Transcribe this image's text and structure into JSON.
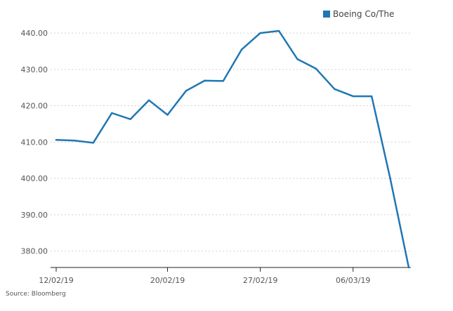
{
  "chart_data": {
    "type": "line",
    "x": [
      "12/02/19",
      "13/02/19",
      "14/02/19",
      "15/02/19",
      "18/02/19",
      "19/02/19",
      "20/02/19",
      "21/02/19",
      "22/02/19",
      "25/02/19",
      "26/02/19",
      "27/02/19",
      "28/02/19",
      "01/03/19",
      "04/03/19",
      "05/03/19",
      "06/03/19",
      "07/03/19",
      "08/03/19",
      "11/03/19"
    ],
    "series": [
      {
        "name": "Boeing Co/The",
        "color": "#1f77b4",
        "values": [
          410.6,
          410.4,
          409.8,
          418.0,
          416.3,
          421.5,
          417.5,
          424.1,
          426.9,
          426.8,
          435.5,
          440.0,
          440.6,
          432.8,
          430.2,
          424.6,
          422.6,
          422.6,
          400.0,
          375.5
        ]
      }
    ],
    "y_ticks": [
      "380.00",
      "390.00",
      "400.00",
      "410.00",
      "420.00",
      "430.00",
      "440.00"
    ],
    "x_ticks": [
      "12/02/19",
      "20/02/19",
      "27/02/19",
      "06/03/19"
    ],
    "ylim": [
      375.5,
      446
    ],
    "grid": "horizontal-dotted",
    "legend": "top-right"
  },
  "source": "Source: Bloomberg"
}
